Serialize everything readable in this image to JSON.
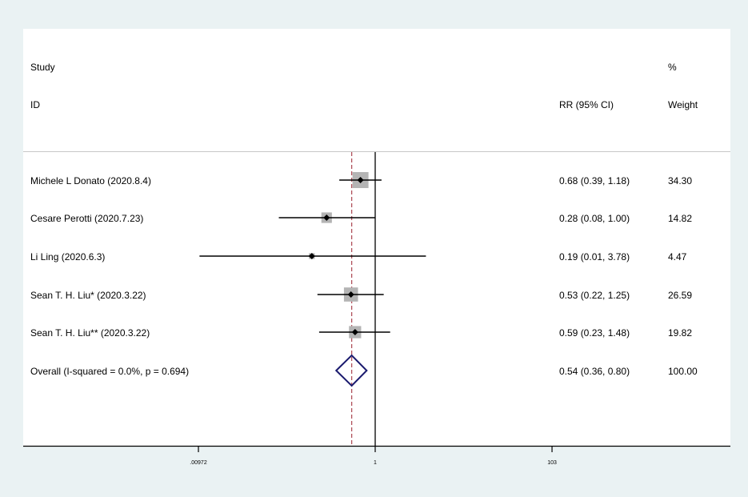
{
  "chart_data": {
    "type": "forest",
    "header": {
      "study": "Study",
      "id": "ID",
      "effect": "RR (95% CI)",
      "pct": "%",
      "weight": "Weight"
    },
    "scale": "log",
    "xticks": [
      {
        "value": 0.00972,
        "label": ".00972"
      },
      {
        "value": 1,
        "label": "1"
      },
      {
        "value": 103,
        "label": "103"
      }
    ],
    "null_line": 1,
    "pooled_line": 0.54,
    "studies": [
      {
        "label": "Michele L Donato (2020.8.4)",
        "rr": 0.68,
        "lo": 0.39,
        "hi": 1.18,
        "ci_text": "0.68 (0.39, 1.18)",
        "weight": "34.30"
      },
      {
        "label": "Cesare Perotti (2020.7.23)",
        "rr": 0.28,
        "lo": 0.08,
        "hi": 1.0,
        "ci_text": "0.28 (0.08, 1.00)",
        "weight": "14.82"
      },
      {
        "label": "Li Ling (2020.6.3)",
        "rr": 0.19,
        "lo": 0.01,
        "hi": 3.78,
        "ci_text": "0.19 (0.01, 3.78)",
        "weight": "4.47"
      },
      {
        "label": "Sean T. H. Liu* (2020.3.22)",
        "rr": 0.53,
        "lo": 0.22,
        "hi": 1.25,
        "ci_text": "0.53 (0.22, 1.25)",
        "weight": "26.59"
      },
      {
        "label": "Sean T. H. Liu** (2020.3.22)",
        "rr": 0.59,
        "lo": 0.23,
        "hi": 1.48,
        "ci_text": "0.59 (0.23, 1.48)",
        "weight": "19.82"
      }
    ],
    "overall": {
      "label": "Overall  (I-squared = 0.0%, p = 0.694)",
      "rr": 0.54,
      "lo": 0.36,
      "hi": 0.8,
      "ci_text": "0.54 (0.36, 0.80)",
      "weight": "100.00"
    },
    "colors": {
      "box": "#b4b4b4",
      "diamond": "#1a1a6e",
      "pooled": "#b0505a"
    }
  }
}
